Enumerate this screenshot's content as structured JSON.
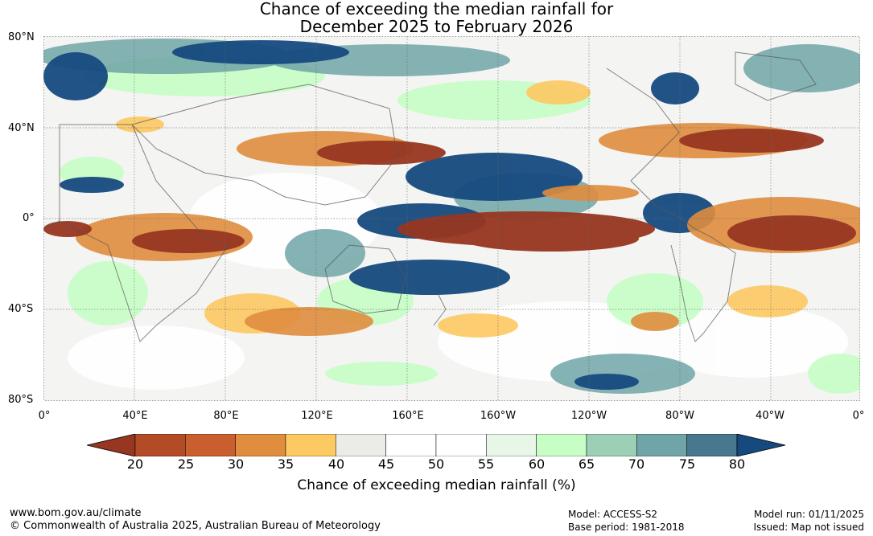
{
  "title": {
    "line1": "Chance of exceeding the median rainfall for",
    "line2": "December 2025 to February 2026"
  },
  "map": {
    "lat_labels": [
      "80°N",
      "40°N",
      "0°",
      "40°S",
      "80°S"
    ],
    "lon_labels": [
      "0°",
      "40°E",
      "80°E",
      "120°E",
      "160°E",
      "160°W",
      "120°W",
      "80°W",
      "40°W",
      "0°"
    ]
  },
  "colorbar": {
    "ticks": [
      "20",
      "25",
      "30",
      "35",
      "40",
      "45",
      "50",
      "55",
      "60",
      "65",
      "70",
      "75",
      "80"
    ],
    "colors": [
      "#973621",
      "#b34b27",
      "#c95f2f",
      "#e08d3e",
      "#fdc962",
      "#ebebe7",
      "#ffffff",
      "#ffffff",
      "#e7f6e7",
      "#c6fec6",
      "#9dcfb6",
      "#70a5a7",
      "#48788f",
      "#164a7f"
    ],
    "label": "Chance of exceeding median rainfall (%)"
  },
  "footer": {
    "website": "www.bom.gov.au/climate",
    "copyright": "© Commonwealth of Australia 2025, Australian Bureau of Meteorology",
    "model": "Model: ACCESS-S2",
    "base_period": "Base period: 1981-2018",
    "model_run": "Model run: 01/11/2025",
    "issued": "Issued: Map not issued"
  }
}
